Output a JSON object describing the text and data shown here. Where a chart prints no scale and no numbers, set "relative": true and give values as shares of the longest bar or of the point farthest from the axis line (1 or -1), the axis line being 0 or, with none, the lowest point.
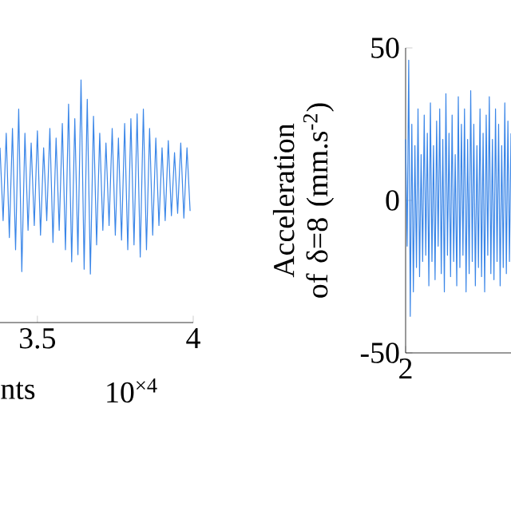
{
  "chart_data": [
    {
      "type": "line",
      "relative": true,
      "color": "#3a86e8",
      "xlabel": "nts",
      "annotations": [
        "10$^{×4}$"
      ],
      "xlim": [
        3.38,
        4
      ],
      "xticks": [
        3.5,
        4
      ],
      "x": [
        3.38,
        3.39,
        3.4,
        3.41,
        3.42,
        3.43,
        3.44,
        3.45,
        3.46,
        3.47,
        3.48,
        3.49,
        3.5,
        3.51,
        3.52,
        3.53,
        3.54,
        3.55,
        3.56,
        3.57,
        3.58,
        3.59,
        3.6,
        3.61,
        3.62,
        3.63,
        3.64,
        3.65,
        3.66,
        3.67,
        3.68,
        3.69,
        3.7,
        3.71,
        3.72,
        3.73,
        3.74,
        3.75,
        3.76,
        3.77,
        3.78,
        3.79,
        3.8,
        3.81,
        3.82,
        3.83,
        3.84,
        3.85,
        3.86,
        3.87,
        3.88,
        3.89,
        3.9,
        3.91,
        3.92,
        3.93,
        3.94,
        3.95,
        3.96,
        3.97,
        3.98,
        3.99
      ],
      "values": [
        0.72,
        0.42,
        0.78,
        0.35,
        0.8,
        0.3,
        0.88,
        0.21,
        0.78,
        0.38,
        0.74,
        0.4,
        0.79,
        0.36,
        0.72,
        0.42,
        0.8,
        0.33,
        0.76,
        0.38,
        0.82,
        0.3,
        0.9,
        0.25,
        0.84,
        0.28,
        1.0,
        0.22,
        0.92,
        0.2,
        0.85,
        0.32,
        0.78,
        0.38,
        0.74,
        0.4,
        0.8,
        0.36,
        0.76,
        0.34,
        0.82,
        0.3,
        0.84,
        0.32,
        0.86,
        0.27,
        0.88,
        0.3,
        0.8,
        0.36,
        0.76,
        0.4,
        0.72,
        0.42,
        0.75,
        0.44,
        0.7,
        0.45,
        0.74,
        0.43,
        0.72,
        0.46
      ]
    },
    {
      "type": "line",
      "color": "#3a86e8",
      "ylabel": "Acceleration of δ=8 (mm.s$^{-2}$)",
      "ylim": [
        -50,
        50
      ],
      "yticks": [
        -50,
        0,
        50
      ],
      "categories": [
        "2",
        null,
        null,
        null,
        null,
        null,
        null,
        null,
        null,
        null,
        null,
        null,
        null,
        null,
        null,
        null,
        null,
        null,
        null,
        null,
        null,
        null,
        null,
        null,
        null,
        null,
        null,
        null,
        null,
        null,
        null,
        null,
        null,
        null,
        null,
        null,
        null,
        null,
        null,
        null,
        null,
        null,
        null,
        null,
        null,
        null,
        null,
        null,
        null,
        null,
        null,
        null,
        null,
        null,
        null,
        null,
        null,
        null,
        null,
        null,
        null,
        null,
        null,
        null,
        null,
        null,
        null,
        null,
        null
      ],
      "values": [
        20,
        -15,
        46,
        -38,
        25,
        -30,
        18,
        -22,
        30,
        -25,
        15,
        -20,
        28,
        -18,
        22,
        -28,
        32,
        -20,
        18,
        -26,
        26,
        -15,
        30,
        -24,
        20,
        -30,
        35,
        -18,
        22,
        -25,
        28,
        -20,
        15,
        -28,
        34,
        -22,
        25,
        -18,
        30,
        -30,
        20,
        -24,
        36,
        -20,
        25,
        -28,
        18,
        -22,
        30,
        -25,
        22,
        -30,
        28,
        -18,
        34,
        -24,
        20,
        -26,
        30,
        -20,
        25,
        -28,
        18,
        -22,
        32,
        -24,
        26,
        -20,
        22
      ]
    }
  ]
}
